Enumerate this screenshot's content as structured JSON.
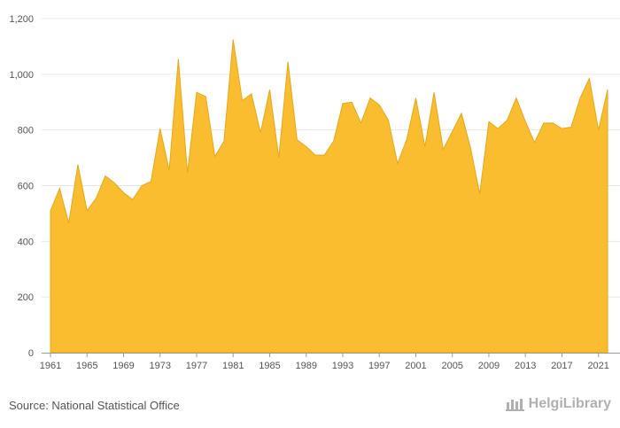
{
  "chart_data": {
    "type": "area",
    "title": "",
    "xlabel": "",
    "ylabel": "",
    "ylim": [
      0,
      1200
    ],
    "yticks": [
      0,
      200,
      400,
      600,
      800,
      1000,
      1200
    ],
    "ytick_labels": [
      "0",
      "200",
      "400",
      "600",
      "800",
      "1,000",
      "1,200"
    ],
    "xticks": [
      1961,
      1965,
      1969,
      1973,
      1977,
      1981,
      1985,
      1989,
      1993,
      1997,
      2001,
      2005,
      2009,
      2013,
      2017,
      2021
    ],
    "xtick_labels": [
      "1961",
      "1965",
      "1969",
      "1973",
      "1977",
      "1981",
      "1985",
      "1989",
      "1993",
      "1997",
      "2001",
      "2005",
      "2009",
      "2013",
      "2017",
      "2021"
    ],
    "grid": true,
    "color": "#fbbd30",
    "x": [
      1961,
      1962,
      1963,
      1964,
      1965,
      1966,
      1967,
      1968,
      1969,
      1970,
      1971,
      1972,
      1973,
      1974,
      1975,
      1976,
      1977,
      1978,
      1979,
      1980,
      1981,
      1982,
      1983,
      1984,
      1985,
      1986,
      1987,
      1988,
      1989,
      1990,
      1991,
      1992,
      1993,
      1994,
      1995,
      1996,
      1997,
      1998,
      1999,
      2000,
      2001,
      2002,
      2003,
      2004,
      2005,
      2006,
      2007,
      2008,
      2009,
      2010,
      2011,
      2012,
      2013,
      2014,
      2015,
      2016,
      2017,
      2018,
      2019,
      2020,
      2021,
      2022
    ],
    "values": [
      510,
      590,
      465,
      675,
      510,
      555,
      635,
      610,
      575,
      550,
      600,
      615,
      805,
      655,
      1055,
      645,
      935,
      920,
      705,
      760,
      1125,
      905,
      930,
      790,
      945,
      700,
      1045,
      765,
      740,
      710,
      710,
      760,
      895,
      900,
      825,
      915,
      890,
      835,
      680,
      765,
      915,
      740,
      935,
      730,
      795,
      860,
      735,
      570,
      830,
      805,
      835,
      915,
      830,
      755,
      825,
      825,
      805,
      810,
      915,
      985,
      800,
      945
    ]
  },
  "footer": {
    "source": "Source: National Statistical Office",
    "brand": "HelgiLibrary"
  },
  "colors": {
    "area": "#fbbd30",
    "area_stroke": "#e6a81a",
    "grid": "#e6e6e6",
    "text": "#555555"
  }
}
